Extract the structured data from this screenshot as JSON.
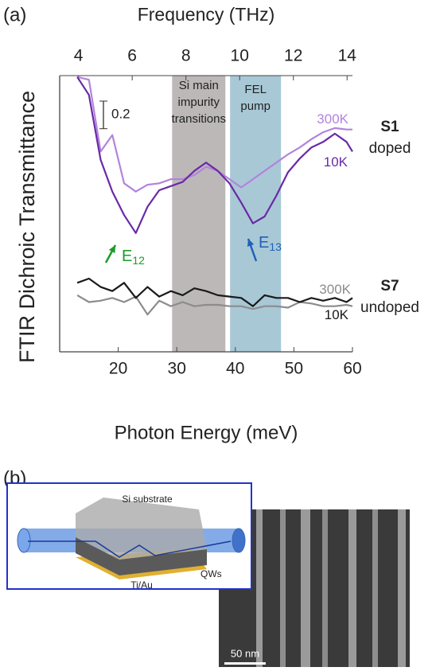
{
  "panel_a": "(a)",
  "panel_b": "(b)",
  "chart_data": {
    "type": "line",
    "xlabel": "Photon Energy (meV)",
    "x2label": "Frequency (THz)",
    "ylabel": "FTIR Dichroic Transmittance",
    "xlim": [
      10,
      60
    ],
    "xticks": [
      20,
      30,
      40,
      50,
      60
    ],
    "x2lim": [
      3.3,
      14.2
    ],
    "x2ticks": [
      4,
      6,
      8,
      10,
      12,
      14
    ],
    "ylim": [
      0,
      2
    ],
    "scale_bar": 0.2,
    "x": [
      13,
      15,
      17,
      19,
      21,
      23,
      25,
      27,
      29,
      31,
      33,
      35,
      37,
      39,
      41,
      43,
      45,
      47,
      49,
      51,
      53,
      55,
      57,
      59,
      60
    ],
    "series": [
      {
        "name": "300K",
        "color": "#b383dc",
        "values": [
          1.99,
          1.97,
          1.45,
          1.57,
          1.22,
          1.16,
          1.21,
          1.22,
          1.25,
          1.25,
          1.28,
          1.34,
          1.31,
          1.25,
          1.19,
          1.25,
          1.31,
          1.37,
          1.43,
          1.48,
          1.54,
          1.59,
          1.62,
          1.61,
          1.61
        ]
      },
      {
        "name": "10K",
        "color": "#6a2aa6",
        "values": [
          1.99,
          1.86,
          1.39,
          1.16,
          0.99,
          0.86,
          1.05,
          1.17,
          1.2,
          1.23,
          1.31,
          1.37,
          1.31,
          1.22,
          1.08,
          0.93,
          0.98,
          1.13,
          1.3,
          1.4,
          1.48,
          1.52,
          1.58,
          1.52,
          1.45
        ]
      },
      {
        "name": "300K",
        "color": "#8c8c8c",
        "values": [
          0.41,
          0.36,
          0.37,
          0.39,
          0.36,
          0.4,
          0.27,
          0.37,
          0.33,
          0.36,
          0.33,
          0.34,
          0.34,
          0.33,
          0.33,
          0.31,
          0.33,
          0.33,
          0.32,
          0.36,
          0.35,
          0.33,
          0.33,
          0.34,
          0.33
        ]
      },
      {
        "name": "10K",
        "color": "#1a1a1a",
        "values": [
          0.5,
          0.53,
          0.47,
          0.44,
          0.5,
          0.39,
          0.47,
          0.4,
          0.44,
          0.41,
          0.46,
          0.44,
          0.41,
          0.4,
          0.39,
          0.33,
          0.41,
          0.39,
          0.39,
          0.36,
          0.39,
          0.37,
          0.39,
          0.36,
          0.39
        ]
      }
    ],
    "samples": [
      {
        "label": "S1",
        "note": "doped"
      },
      {
        "label": "S7",
        "note": "undoped"
      }
    ],
    "bands": [
      {
        "lines": [
          "Si main",
          "impurity",
          "transitions"
        ],
        "x": [
          29.2,
          38.3
        ],
        "color": "#bcb8b8"
      },
      {
        "lines": [
          "FEL",
          "pump"
        ],
        "x": [
          39.1,
          47.8
        ],
        "color": "#a8c8d6"
      }
    ],
    "peaks": [
      {
        "label": "E",
        "sub": "12",
        "color": "#1e9a2a"
      },
      {
        "label": "E",
        "sub": "13",
        "color": "#2060b8"
      }
    ]
  },
  "diagram": {
    "substrate": "Si substrate",
    "qws": "QWs",
    "contact": "Ti/Au",
    "scale": "50 nm"
  }
}
